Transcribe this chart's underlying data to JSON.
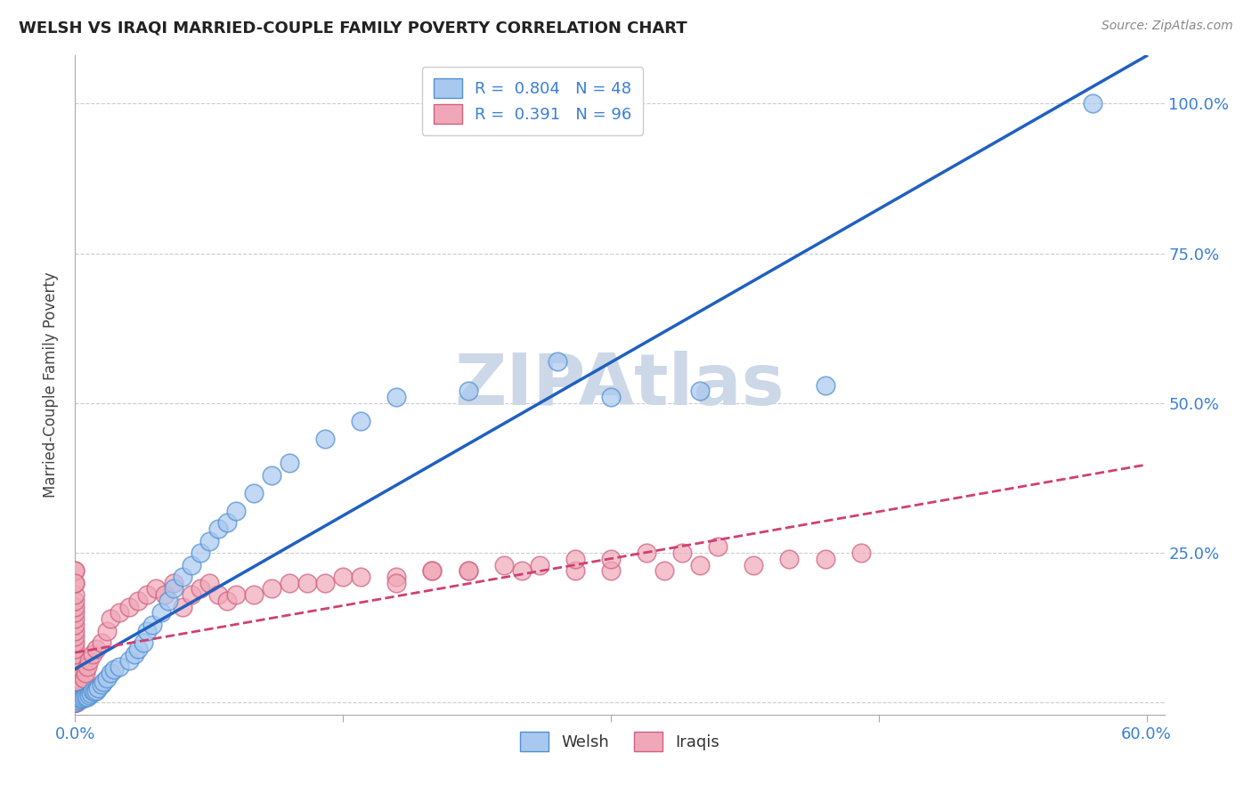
{
  "title": "WELSH VS IRAQI MARRIED-COUPLE FAMILY POVERTY CORRELATION CHART",
  "source": "Source: ZipAtlas.com",
  "ylabel": "Married-Couple Family Poverty",
  "xlim": [
    0.0,
    0.61
  ],
  "ylim": [
    -0.02,
    1.08
  ],
  "welsh_R": 0.804,
  "welsh_N": 48,
  "iraqi_R": 0.391,
  "iraqi_N": 96,
  "welsh_color": "#a8c8f0",
  "iraqi_color": "#f0a8b8",
  "welsh_edge_color": "#5090d0",
  "iraqi_edge_color": "#d06080",
  "welsh_line_color": "#2060c0",
  "iraqi_line_color": "#d04070",
  "title_color": "#222222",
  "source_color": "#888888",
  "legend_R_color": "#3a7fd5",
  "background_color": "#ffffff",
  "grid_color": "#cccccc",
  "axis_color": "#aaaaaa",
  "ytick_color": "#3a7fd5",
  "xtick_color": "#3a7fd5",
  "watermark_color": "#ccd8e8",
  "welsh_scatter_x": [
    0.0,
    0.001,
    0.002,
    0.003,
    0.004,
    0.005,
    0.006,
    0.007,
    0.008,
    0.009,
    0.01,
    0.011,
    0.012,
    0.013,
    0.015,
    0.016,
    0.018,
    0.02,
    0.022,
    0.025,
    0.03,
    0.033,
    0.035,
    0.038,
    0.04,
    0.043,
    0.048,
    0.052,
    0.055,
    0.06,
    0.065,
    0.07,
    0.075,
    0.08,
    0.085,
    0.09,
    0.1,
    0.11,
    0.12,
    0.14,
    0.16,
    0.18,
    0.22,
    0.27,
    0.3,
    0.35,
    0.42,
    0.57
  ],
  "welsh_scatter_y": [
    0.0,
    0.005,
    0.003,
    0.007,
    0.006,
    0.008,
    0.01,
    0.009,
    0.012,
    0.015,
    0.02,
    0.018,
    0.02,
    0.025,
    0.03,
    0.035,
    0.04,
    0.05,
    0.055,
    0.06,
    0.07,
    0.08,
    0.09,
    0.1,
    0.12,
    0.13,
    0.15,
    0.17,
    0.19,
    0.21,
    0.23,
    0.25,
    0.27,
    0.29,
    0.3,
    0.32,
    0.35,
    0.38,
    0.4,
    0.44,
    0.47,
    0.51,
    0.52,
    0.57,
    0.51,
    0.52,
    0.53,
    1.0
  ],
  "iraqi_scatter_x": [
    0.0,
    0.0,
    0.0,
    0.0,
    0.0,
    0.0,
    0.0,
    0.0,
    0.0,
    0.0,
    0.0,
    0.0,
    0.0,
    0.0,
    0.0,
    0.0,
    0.0,
    0.0,
    0.0,
    0.0,
    0.0,
    0.0,
    0.0,
    0.0,
    0.0,
    0.0,
    0.0,
    0.0,
    0.0,
    0.0,
    0.0,
    0.0,
    0.0,
    0.0,
    0.0,
    0.0,
    0.0,
    0.0,
    0.0,
    0.0,
    0.001,
    0.002,
    0.003,
    0.004,
    0.005,
    0.006,
    0.007,
    0.008,
    0.01,
    0.012,
    0.015,
    0.018,
    0.02,
    0.025,
    0.03,
    0.035,
    0.04,
    0.045,
    0.05,
    0.055,
    0.06,
    0.065,
    0.07,
    0.075,
    0.08,
    0.085,
    0.09,
    0.1,
    0.11,
    0.12,
    0.13,
    0.14,
    0.15,
    0.16,
    0.18,
    0.2,
    0.22,
    0.25,
    0.28,
    0.3,
    0.33,
    0.35,
    0.38,
    0.4,
    0.42,
    0.44,
    0.18,
    0.2,
    0.22,
    0.24,
    0.26,
    0.28,
    0.3,
    0.32,
    0.34,
    0.36
  ],
  "iraqi_scatter_y": [
    0.0,
    0.0,
    0.0,
    0.0,
    0.0,
    0.0,
    0.0,
    0.0,
    0.0,
    0.0,
    0.0,
    0.0,
    0.0,
    0.0,
    0.0,
    0.005,
    0.01,
    0.015,
    0.02,
    0.025,
    0.03,
    0.04,
    0.05,
    0.06,
    0.07,
    0.08,
    0.09,
    0.1,
    0.11,
    0.12,
    0.13,
    0.14,
    0.15,
    0.16,
    0.17,
    0.18,
    0.2,
    0.22,
    0.22,
    0.2,
    0.0,
    0.01,
    0.02,
    0.03,
    0.04,
    0.05,
    0.06,
    0.07,
    0.08,
    0.09,
    0.1,
    0.12,
    0.14,
    0.15,
    0.16,
    0.17,
    0.18,
    0.19,
    0.18,
    0.2,
    0.16,
    0.18,
    0.19,
    0.2,
    0.18,
    0.17,
    0.18,
    0.18,
    0.19,
    0.2,
    0.2,
    0.2,
    0.21,
    0.21,
    0.21,
    0.22,
    0.22,
    0.22,
    0.22,
    0.22,
    0.22,
    0.23,
    0.23,
    0.24,
    0.24,
    0.25,
    0.2,
    0.22,
    0.22,
    0.23,
    0.23,
    0.24,
    0.24,
    0.25,
    0.25,
    0.26
  ],
  "xtick_positions": [
    0.0,
    0.15,
    0.3,
    0.45,
    0.6
  ],
  "xtick_labels": [
    "0.0%",
    "",
    "",
    "",
    "60.0%"
  ],
  "ytick_positions": [
    0.0,
    0.25,
    0.5,
    0.75,
    1.0
  ],
  "ytick_labels": [
    "",
    "25.0%",
    "50.0%",
    "75.0%",
    "100.0%"
  ]
}
